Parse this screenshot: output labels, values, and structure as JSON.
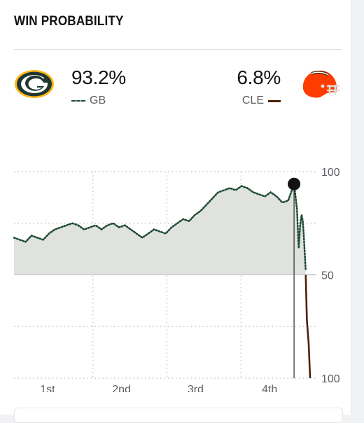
{
  "header": {
    "title": "WIN PROBABILITY"
  },
  "teams": {
    "home": {
      "abbr": "GB",
      "pct": "93.2%",
      "icon": "packers-logo-icon",
      "color": "#1d4a33",
      "logo_color": "#203731",
      "logo_accent": "#ffb612"
    },
    "away": {
      "abbr": "CLE",
      "pct": "6.8%",
      "icon": "browns-helmet-icon",
      "color": "#4b2208",
      "logo_color": "#ff3c00"
    }
  },
  "chart_data": {
    "type": "line",
    "ylim": [
      0,
      100
    ],
    "y_tick_labels": [
      "100",
      "50",
      "100"
    ],
    "y_tick_values": [
      100,
      50,
      0
    ],
    "x_tick_labels": [
      "1st",
      "2nd",
      "3rd",
      "4th"
    ],
    "grid": true,
    "legend": "none",
    "series": [
      {
        "team": "GB",
        "style": "dotted",
        "x": [
          0,
          2,
          4,
          6,
          8,
          10,
          12,
          14,
          16,
          18,
          20,
          22,
          24,
          26,
          28,
          30,
          32,
          34,
          36,
          38,
          40,
          42,
          44,
          46,
          48,
          50,
          52,
          54,
          56,
          58,
          60,
          62,
          64,
          66,
          68,
          70,
          72,
          74,
          76,
          78,
          80,
          82,
          84,
          86,
          88,
          90,
          92,
          94,
          96,
          97,
          97.6,
          98.1,
          98.6,
          99,
          99.3,
          100
        ],
        "y": [
          68,
          67,
          66,
          69,
          68,
          67,
          70,
          72,
          73,
          74,
          75,
          74,
          72,
          73,
          74,
          72,
          74,
          75,
          73,
          74,
          72,
          70,
          68,
          70,
          72,
          71,
          70,
          73,
          75,
          77,
          76,
          79,
          81,
          84,
          87,
          90,
          91,
          92,
          91,
          93,
          92,
          90,
          89,
          88,
          90,
          88,
          85,
          86,
          94,
          82,
          63,
          74,
          79,
          76,
          70,
          52
        ]
      },
      {
        "team": "CLE",
        "style": "solid",
        "x": [
          100,
          100.4,
          101,
          101.5
        ],
        "y": [
          50,
          28,
          17,
          0
        ]
      }
    ],
    "annotations": {
      "current_point": {
        "x": 96,
        "y": 94
      }
    }
  },
  "footer": {}
}
